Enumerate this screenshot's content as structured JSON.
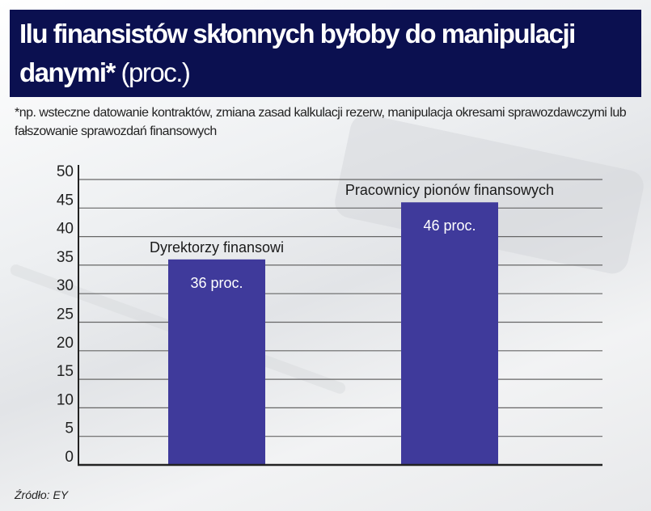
{
  "title_bold": "Ilu finansistów skłonnych byłoby do manipulacji danymi*",
  "title_light": "(proc.)",
  "subtitle": "*np. wsteczne datowanie kontraktów, zmiana zasad kalkulacji rezerw, manipulacja okresami sprawozdawczymi lub fałszowanie sprawozdań finansowych",
  "source": "Źródło: EY",
  "colors": {
    "bar": "#3f3a9b",
    "title_bg": "#0b1050"
  },
  "chart_data": {
    "type": "bar",
    "title": "Ilu finansistów skłonnych byłoby do manipulacji danymi* (proc.)",
    "categories": [
      "Dyrektorzy finansowi",
      "Pracownicy pionów finansowych"
    ],
    "values": [
      36,
      46
    ],
    "data_labels": [
      "36 proc.",
      "46 proc."
    ],
    "ylim": [
      0,
      50
    ],
    "yticks": [
      0,
      5,
      10,
      15,
      20,
      25,
      30,
      35,
      40,
      45,
      50
    ],
    "grid": true,
    "xlabel": "",
    "ylabel": ""
  }
}
